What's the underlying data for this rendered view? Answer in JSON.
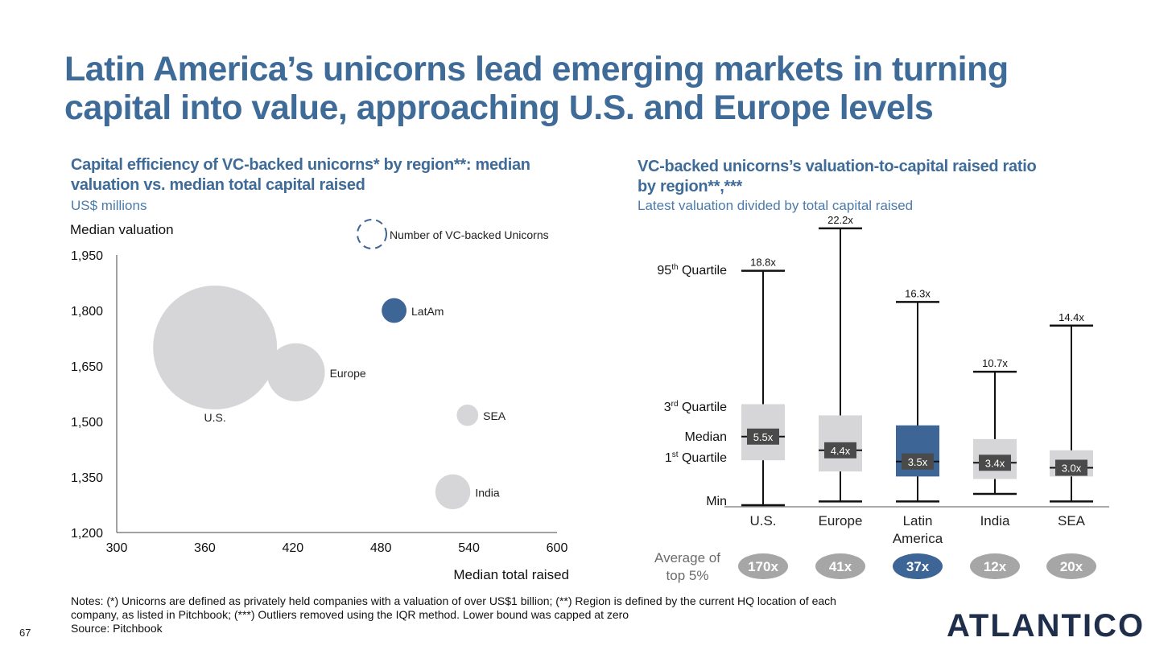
{
  "title": "Latin America’s unicorns lead emerging markets in turning capital into value, approaching U.S. and Europe levels",
  "left": {
    "heading": "Capital efficiency of VC-backed unicorns* by region**: median valuation vs. median total capital raised",
    "unit": "US$ millions"
  },
  "right": {
    "heading": "VC-backed unicorns’s valuation-to-capital raised ratio by region**,***",
    "subheading": "Latest valuation divided by total capital raised"
  },
  "notes": [
    "Notes: (*) Unicorns are defined as privately held companies with a valuation of over US$1 billion; (**) Region is defined by the current HQ location of each company, as listed in Pitchbook; (***) Outliers removed using the IQR method. Lower bound was capped at zero",
    "Source: Pitchbook"
  ],
  "page_number": "67",
  "logo": "ATLANTICO",
  "colors": {
    "accent": "#3f6b98",
    "highlight": "#3d6596",
    "gray": "#d6d6d9",
    "label_box": "#4a4a4a",
    "pill_gray": "#a6a6a6"
  },
  "chart_data": [
    {
      "type": "scatter",
      "subtype": "bubble",
      "title": "Capital efficiency of VC-backed unicorns by region",
      "xlabel": "Median total raised",
      "ylabel": "Median valuation",
      "xlim": [
        300,
        600
      ],
      "ylim": [
        1200,
        1950
      ],
      "xticks": [
        "300",
        "360",
        "420",
        "480",
        "540",
        "600"
      ],
      "yticks": [
        "1,200",
        "1,350",
        "1,500",
        "1,650",
        "1,800",
        "1,950"
      ],
      "legend": "Number of VC-backed Unicorns",
      "points": [
        {
          "label": "U.S.",
          "x": 367,
          "y": 1700,
          "relative_size": 100,
          "highlight": false
        },
        {
          "label": "Europe",
          "x": 422,
          "y": 1633,
          "relative_size": 22,
          "highlight": false
        },
        {
          "label": "LatAm",
          "x": 489,
          "y": 1800,
          "relative_size": 4,
          "highlight": true
        },
        {
          "label": "SEA",
          "x": 539,
          "y": 1517,
          "relative_size": 3,
          "highlight": false
        },
        {
          "label": "India",
          "x": 529,
          "y": 1310,
          "relative_size": 8,
          "highlight": false
        }
      ]
    },
    {
      "type": "box",
      "title": "Valuation-to-capital raised ratio by region",
      "ylim": [
        0,
        22.5
      ],
      "row_labels": {
        "p95": "95",
        "p95_sup": "th",
        "p95_rest": " Quartile",
        "q3": "3",
        "q3_sup": "rd",
        "q3_rest": " Quartile",
        "median": "Median",
        "q1": "1",
        "q1_sup": "st",
        "q1_rest": " Quartile",
        "min": "Min"
      },
      "avg_label": "Average of top 5%",
      "categories": [
        {
          "label": "U.S.",
          "min": 0,
          "q1": 3.6,
          "median": 5.5,
          "q3": 8.1,
          "max": 18.8,
          "median_label": "5.5x",
          "max_label": "18.8x",
          "avg_top5": "170x",
          "highlight": false
        },
        {
          "label": "Europe",
          "min": 0.3,
          "q1": 2.7,
          "median": 4.4,
          "q3": 7.2,
          "max": 22.2,
          "median_label": "4.4x",
          "max_label": "22.2x",
          "avg_top5": "41x",
          "highlight": false
        },
        {
          "label": "Latin America",
          "min": 0.3,
          "q1": 2.3,
          "median": 3.5,
          "q3": 6.4,
          "max": 16.3,
          "median_label": "3.5x",
          "max_label": "16.3x",
          "avg_top5": "37x",
          "highlight": true
        },
        {
          "label": "India",
          "min": 0.9,
          "q1": 2.1,
          "median": 3.4,
          "q3": 5.3,
          "max": 10.7,
          "median_label": "3.4x",
          "max_label": "10.7x",
          "avg_top5": "12x",
          "highlight": false
        },
        {
          "label": "SEA",
          "min": 0.3,
          "q1": 2.3,
          "median": 3.0,
          "q3": 4.4,
          "max": 14.4,
          "median_label": "3.0x",
          "max_label": "14.4x",
          "avg_top5": "20x",
          "highlight": false
        }
      ]
    }
  ]
}
